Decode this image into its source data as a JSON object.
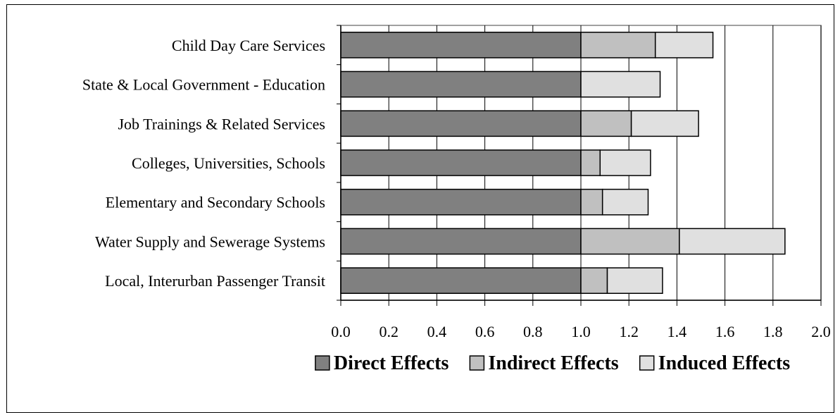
{
  "chart_data": {
    "type": "bar",
    "orientation": "horizontal",
    "stacked": true,
    "categories": [
      "Child Day Care Services",
      "State & Local Government - Education",
      "Job Trainings & Related Services",
      "Colleges, Universities, Schools",
      "Elementary and Secondary Schools",
      "Water Supply and Sewerage Systems",
      "Local, Interurban Passenger Transit"
    ],
    "series": [
      {
        "name": "Direct Effects",
        "color": "#808080",
        "values": [
          1.0,
          1.0,
          1.0,
          1.0,
          1.0,
          1.0,
          1.0
        ]
      },
      {
        "name": "Indirect Effects",
        "color": "#c0c0c0",
        "values": [
          0.31,
          0.0,
          0.21,
          0.08,
          0.09,
          0.41,
          0.11
        ]
      },
      {
        "name": "Induced Effects",
        "color": "#e0e0e0",
        "values": [
          0.24,
          0.33,
          0.28,
          0.21,
          0.19,
          0.44,
          0.23
        ]
      }
    ],
    "xlim": [
      0.0,
      2.0
    ],
    "x_ticks": [
      "0.0",
      "0.2",
      "0.4",
      "0.6",
      "0.8",
      "1.0",
      "1.2",
      "1.4",
      "1.6",
      "1.8",
      "2.0"
    ],
    "x_tick_values": [
      0.0,
      0.2,
      0.4,
      0.6,
      0.8,
      1.0,
      1.2,
      1.4,
      1.6,
      1.8,
      2.0
    ],
    "grid": "vertical",
    "legend_position": "bottom"
  }
}
